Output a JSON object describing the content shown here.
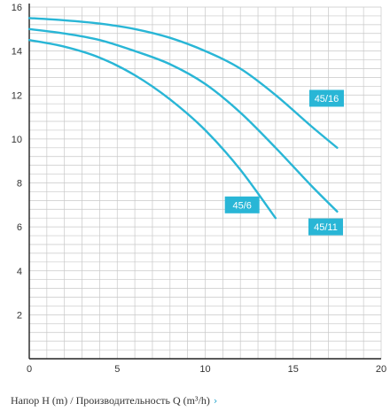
{
  "chart_data": {
    "type": "line",
    "x_ticks": [
      0,
      5,
      10,
      15,
      20
    ],
    "y_ticks": [
      2,
      4,
      6,
      8,
      10,
      12,
      14,
      16
    ],
    "xlim": [
      0,
      20
    ],
    "ylim": [
      0,
      16
    ],
    "grid": true,
    "series_color": "#29b6d6",
    "series": [
      {
        "name": "45/16",
        "points": [
          [
            0,
            15.5
          ],
          [
            2,
            15.4
          ],
          [
            4,
            15.25
          ],
          [
            6,
            15.0
          ],
          [
            8,
            14.6
          ],
          [
            10,
            14.0
          ],
          [
            12,
            13.2
          ],
          [
            14,
            12.0
          ],
          [
            16,
            10.6
          ],
          [
            17.5,
            9.6
          ]
        ]
      },
      {
        "name": "45/11",
        "points": [
          [
            0,
            15.0
          ],
          [
            2,
            14.8
          ],
          [
            4,
            14.5
          ],
          [
            6,
            14.0
          ],
          [
            8,
            13.4
          ],
          [
            10,
            12.5
          ],
          [
            12,
            11.2
          ],
          [
            14,
            9.6
          ],
          [
            16,
            7.9
          ],
          [
            17.5,
            6.7
          ]
        ]
      },
      {
        "name": "45/6",
        "points": [
          [
            0,
            14.5
          ],
          [
            2,
            14.2
          ],
          [
            4,
            13.7
          ],
          [
            6,
            12.9
          ],
          [
            8,
            11.8
          ],
          [
            10,
            10.4
          ],
          [
            12,
            8.6
          ],
          [
            14,
            6.4
          ]
        ]
      }
    ],
    "labels": [
      {
        "text": "45/16",
        "x": 16.9,
        "y": 11.85
      },
      {
        "text": "45/11",
        "x": 16.85,
        "y": 6.0
      },
      {
        "text": "45/6",
        "x": 12.1,
        "y": 7.0
      }
    ]
  },
  "caption": {
    "text": "Напор H (m) / Производительность Q (m³/h)",
    "chevron": "›"
  }
}
